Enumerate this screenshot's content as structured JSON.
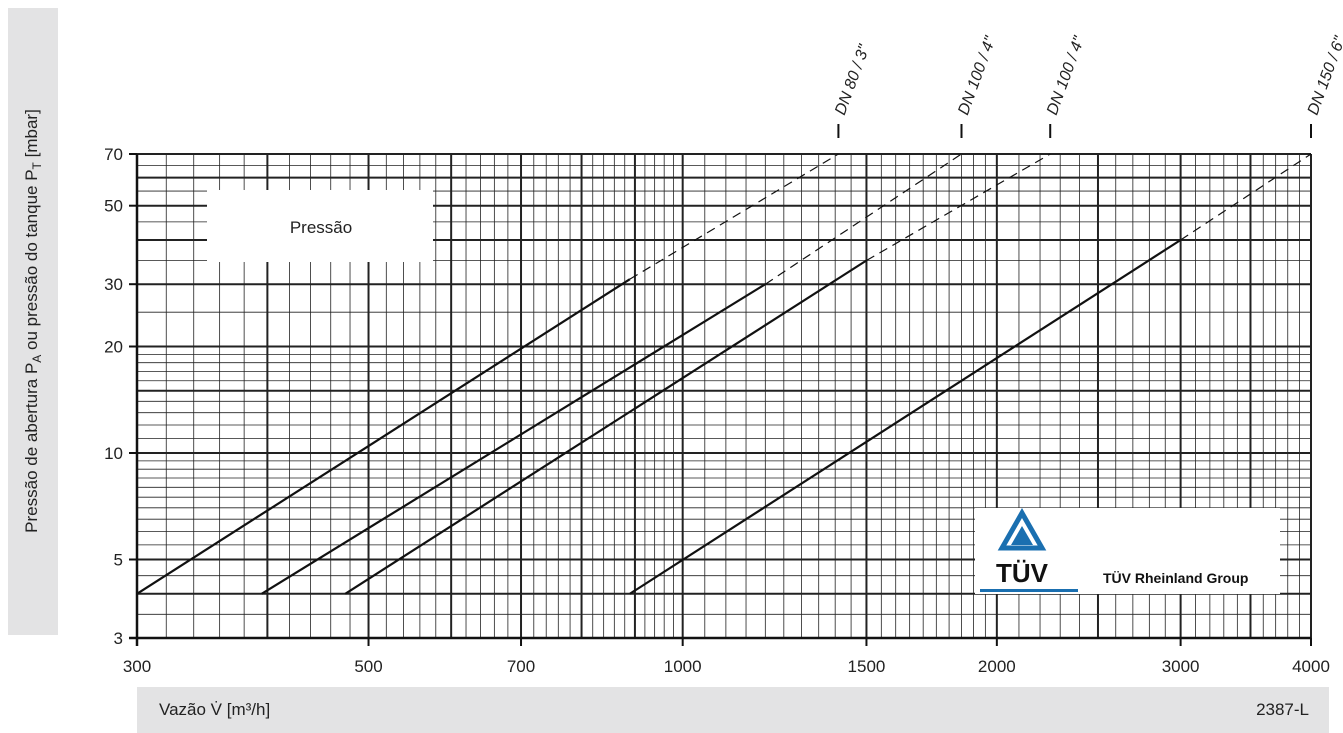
{
  "ylabel": {
    "text_main": "Pressão de abertura P",
    "sub_a": "A",
    "text_mid": " ou pressão do tanque P",
    "sub_t": "T",
    "text_unit": " [mbar]"
  },
  "xlabel": "Vazão V̇ [m³/h]",
  "code": "2387-L",
  "legend_box": "Pressão",
  "logo": {
    "brand": "TÜV",
    "group": "TÜV Rheinland Group",
    "accent": "#1a6fb0"
  },
  "chart_data": {
    "type": "line",
    "x_scale": "log",
    "y_scale": "log",
    "xlim": [
      300,
      4000
    ],
    "ylim": [
      3,
      70
    ],
    "x_ticks": [
      300,
      500,
      700,
      1000,
      1500,
      2000,
      3000,
      4000
    ],
    "x_tick_labels": [
      "300",
      "500",
      "700",
      "1000",
      "1500",
      "2000",
      "3000",
      "4000"
    ],
    "y_ticks": [
      3,
      5,
      10,
      20,
      30,
      50,
      70
    ],
    "y_tick_labels": [
      "3",
      "5",
      "10",
      "20",
      "30",
      "50",
      "70"
    ],
    "grid": true,
    "series": [
      {
        "name": "DN 80 / 3\"",
        "solid": [
          [
            300,
            4.0
          ],
          [
            890,
            31
          ]
        ],
        "dashed": [
          [
            890,
            31
          ],
          [
            1410,
            70
          ]
        ]
      },
      {
        "name": "DN 100 / 4\"",
        "solid": [
          [
            395,
            4.0
          ],
          [
            1200,
            30
          ]
        ],
        "dashed": [
          [
            1200,
            30
          ],
          [
            1850,
            70
          ]
        ]
      },
      {
        "name": "DN 100 / 4\"",
        "solid": [
          [
            475,
            4.0
          ],
          [
            1500,
            35
          ]
        ],
        "dashed": [
          [
            1500,
            35
          ],
          [
            2250,
            70
          ]
        ]
      },
      {
        "name": "DN 150 / 6\"",
        "solid": [
          [
            890,
            4.0
          ],
          [
            3000,
            40
          ]
        ],
        "dashed": [
          [
            3000,
            40
          ],
          [
            4000,
            70
          ]
        ]
      }
    ]
  }
}
